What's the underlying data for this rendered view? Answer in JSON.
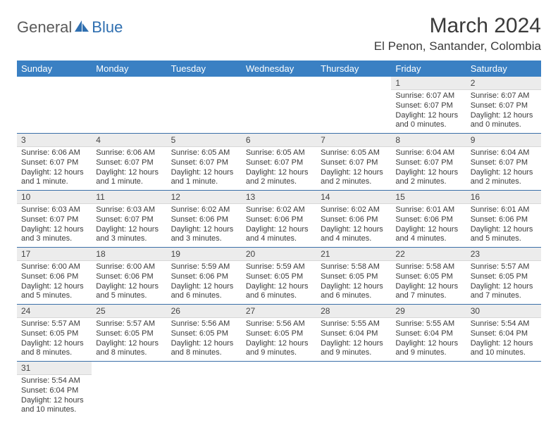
{
  "logo": {
    "part1": "General",
    "part2": "Blue"
  },
  "title": "March 2024",
  "location": "El Penon, Santander, Colombia",
  "colors": {
    "header_bg": "#3a80c3",
    "header_text": "#ffffff",
    "row_divider": "#3a6fa8",
    "daynum_bg": "#ececec",
    "logo_gray": "#5a5a5a",
    "logo_blue": "#2f6fb0",
    "text": "#3a3a3a",
    "background": "#ffffff"
  },
  "typography": {
    "title_fontsize": 30,
    "location_fontsize": 17,
    "header_fontsize": 13,
    "daynum_fontsize": 12,
    "body_fontsize": 11
  },
  "calendar": {
    "type": "table",
    "columns": [
      "Sunday",
      "Monday",
      "Tuesday",
      "Wednesday",
      "Thursday",
      "Friday",
      "Saturday"
    ],
    "weeks": [
      [
        null,
        null,
        null,
        null,
        null,
        {
          "day": "1",
          "sunrise": "Sunrise: 6:07 AM",
          "sunset": "Sunset: 6:07 PM",
          "daylight": "Daylight: 12 hours and 0 minutes."
        },
        {
          "day": "2",
          "sunrise": "Sunrise: 6:07 AM",
          "sunset": "Sunset: 6:07 PM",
          "daylight": "Daylight: 12 hours and 0 minutes."
        }
      ],
      [
        {
          "day": "3",
          "sunrise": "Sunrise: 6:06 AM",
          "sunset": "Sunset: 6:07 PM",
          "daylight": "Daylight: 12 hours and 1 minute."
        },
        {
          "day": "4",
          "sunrise": "Sunrise: 6:06 AM",
          "sunset": "Sunset: 6:07 PM",
          "daylight": "Daylight: 12 hours and 1 minute."
        },
        {
          "day": "5",
          "sunrise": "Sunrise: 6:05 AM",
          "sunset": "Sunset: 6:07 PM",
          "daylight": "Daylight: 12 hours and 1 minute."
        },
        {
          "day": "6",
          "sunrise": "Sunrise: 6:05 AM",
          "sunset": "Sunset: 6:07 PM",
          "daylight": "Daylight: 12 hours and 2 minutes."
        },
        {
          "day": "7",
          "sunrise": "Sunrise: 6:05 AM",
          "sunset": "Sunset: 6:07 PM",
          "daylight": "Daylight: 12 hours and 2 minutes."
        },
        {
          "day": "8",
          "sunrise": "Sunrise: 6:04 AM",
          "sunset": "Sunset: 6:07 PM",
          "daylight": "Daylight: 12 hours and 2 minutes."
        },
        {
          "day": "9",
          "sunrise": "Sunrise: 6:04 AM",
          "sunset": "Sunset: 6:07 PM",
          "daylight": "Daylight: 12 hours and 2 minutes."
        }
      ],
      [
        {
          "day": "10",
          "sunrise": "Sunrise: 6:03 AM",
          "sunset": "Sunset: 6:07 PM",
          "daylight": "Daylight: 12 hours and 3 minutes."
        },
        {
          "day": "11",
          "sunrise": "Sunrise: 6:03 AM",
          "sunset": "Sunset: 6:07 PM",
          "daylight": "Daylight: 12 hours and 3 minutes."
        },
        {
          "day": "12",
          "sunrise": "Sunrise: 6:02 AM",
          "sunset": "Sunset: 6:06 PM",
          "daylight": "Daylight: 12 hours and 3 minutes."
        },
        {
          "day": "13",
          "sunrise": "Sunrise: 6:02 AM",
          "sunset": "Sunset: 6:06 PM",
          "daylight": "Daylight: 12 hours and 4 minutes."
        },
        {
          "day": "14",
          "sunrise": "Sunrise: 6:02 AM",
          "sunset": "Sunset: 6:06 PM",
          "daylight": "Daylight: 12 hours and 4 minutes."
        },
        {
          "day": "15",
          "sunrise": "Sunrise: 6:01 AM",
          "sunset": "Sunset: 6:06 PM",
          "daylight": "Daylight: 12 hours and 4 minutes."
        },
        {
          "day": "16",
          "sunrise": "Sunrise: 6:01 AM",
          "sunset": "Sunset: 6:06 PM",
          "daylight": "Daylight: 12 hours and 5 minutes."
        }
      ],
      [
        {
          "day": "17",
          "sunrise": "Sunrise: 6:00 AM",
          "sunset": "Sunset: 6:06 PM",
          "daylight": "Daylight: 12 hours and 5 minutes."
        },
        {
          "day": "18",
          "sunrise": "Sunrise: 6:00 AM",
          "sunset": "Sunset: 6:06 PM",
          "daylight": "Daylight: 12 hours and 5 minutes."
        },
        {
          "day": "19",
          "sunrise": "Sunrise: 5:59 AM",
          "sunset": "Sunset: 6:06 PM",
          "daylight": "Daylight: 12 hours and 6 minutes."
        },
        {
          "day": "20",
          "sunrise": "Sunrise: 5:59 AM",
          "sunset": "Sunset: 6:05 PM",
          "daylight": "Daylight: 12 hours and 6 minutes."
        },
        {
          "day": "21",
          "sunrise": "Sunrise: 5:58 AM",
          "sunset": "Sunset: 6:05 PM",
          "daylight": "Daylight: 12 hours and 6 minutes."
        },
        {
          "day": "22",
          "sunrise": "Sunrise: 5:58 AM",
          "sunset": "Sunset: 6:05 PM",
          "daylight": "Daylight: 12 hours and 7 minutes."
        },
        {
          "day": "23",
          "sunrise": "Sunrise: 5:57 AM",
          "sunset": "Sunset: 6:05 PM",
          "daylight": "Daylight: 12 hours and 7 minutes."
        }
      ],
      [
        {
          "day": "24",
          "sunrise": "Sunrise: 5:57 AM",
          "sunset": "Sunset: 6:05 PM",
          "daylight": "Daylight: 12 hours and 8 minutes."
        },
        {
          "day": "25",
          "sunrise": "Sunrise: 5:57 AM",
          "sunset": "Sunset: 6:05 PM",
          "daylight": "Daylight: 12 hours and 8 minutes."
        },
        {
          "day": "26",
          "sunrise": "Sunrise: 5:56 AM",
          "sunset": "Sunset: 6:05 PM",
          "daylight": "Daylight: 12 hours and 8 minutes."
        },
        {
          "day": "27",
          "sunrise": "Sunrise: 5:56 AM",
          "sunset": "Sunset: 6:05 PM",
          "daylight": "Daylight: 12 hours and 9 minutes."
        },
        {
          "day": "28",
          "sunrise": "Sunrise: 5:55 AM",
          "sunset": "Sunset: 6:04 PM",
          "daylight": "Daylight: 12 hours and 9 minutes."
        },
        {
          "day": "29",
          "sunrise": "Sunrise: 5:55 AM",
          "sunset": "Sunset: 6:04 PM",
          "daylight": "Daylight: 12 hours and 9 minutes."
        },
        {
          "day": "30",
          "sunrise": "Sunrise: 5:54 AM",
          "sunset": "Sunset: 6:04 PM",
          "daylight": "Daylight: 12 hours and 10 minutes."
        }
      ],
      [
        {
          "day": "31",
          "sunrise": "Sunrise: 5:54 AM",
          "sunset": "Sunset: 6:04 PM",
          "daylight": "Daylight: 12 hours and 10 minutes."
        },
        null,
        null,
        null,
        null,
        null,
        null
      ]
    ]
  }
}
